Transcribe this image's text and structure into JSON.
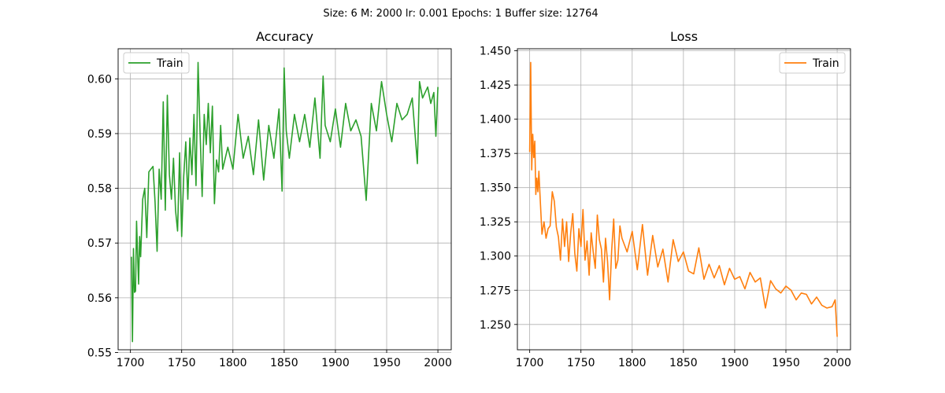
{
  "suptitle": "Size: 6   M: 2000   lr: 0.001   Epochs: 1   Buffer size: 12764",
  "chart_data": [
    {
      "type": "line",
      "title": "Accuracy",
      "xlabel": "",
      "ylabel": "",
      "xlim": [
        1688,
        2013
      ],
      "ylim": [
        0.5505,
        0.6055
      ],
      "xticks": [
        1700,
        1750,
        1800,
        1850,
        1900,
        1950,
        2000
      ],
      "xtick_labels": [
        "1700",
        "1750",
        "1800",
        "1850",
        "1900",
        "1950",
        "2000"
      ],
      "yticks": [
        0.55,
        0.56,
        0.57,
        0.58,
        0.59,
        0.6
      ],
      "ytick_labels": [
        "0.55",
        "0.56",
        "0.57",
        "0.58",
        "0.59",
        "0.60"
      ],
      "grid": true,
      "legend_position": "upper-left",
      "series": [
        {
          "name": "Train",
          "color": "#2ca02c",
          "x": [
            1701,
            1702,
            1703,
            1704,
            1705,
            1706,
            1707,
            1708,
            1709,
            1710,
            1712,
            1714,
            1716,
            1718,
            1720,
            1722,
            1724,
            1726,
            1728,
            1730,
            1732,
            1734,
            1736,
            1738,
            1740,
            1742,
            1744,
            1746,
            1748,
            1750,
            1752,
            1754,
            1756,
            1758,
            1760,
            1762,
            1764,
            1766,
            1768,
            1770,
            1772,
            1774,
            1776,
            1778,
            1780,
            1782,
            1784,
            1786,
            1788,
            1790,
            1795,
            1800,
            1805,
            1810,
            1815,
            1820,
            1825,
            1830,
            1835,
            1840,
            1845,
            1848,
            1850,
            1852,
            1855,
            1860,
            1865,
            1870,
            1875,
            1880,
            1885,
            1888,
            1890,
            1895,
            1900,
            1905,
            1910,
            1915,
            1920,
            1925,
            1930,
            1935,
            1940,
            1945,
            1950,
            1955,
            1960,
            1965,
            1970,
            1975,
            1980,
            1982,
            1985,
            1990,
            1993,
            1996,
            1998,
            2000
          ],
          "y": [
            0.5675,
            0.552,
            0.569,
            0.561,
            0.5612,
            0.574,
            0.568,
            0.5625,
            0.5712,
            0.5675,
            0.578,
            0.58,
            0.571,
            0.583,
            0.5835,
            0.584,
            0.5775,
            0.5685,
            0.5835,
            0.578,
            0.5958,
            0.576,
            0.597,
            0.5825,
            0.578,
            0.5855,
            0.576,
            0.5722,
            0.5865,
            0.5712,
            0.5822,
            0.5885,
            0.578,
            0.5892,
            0.5825,
            0.5935,
            0.5805,
            0.603,
            0.59,
            0.5785,
            0.5935,
            0.588,
            0.5955,
            0.5865,
            0.595,
            0.5772,
            0.5852,
            0.583,
            0.5915,
            0.5835,
            0.5875,
            0.5835,
            0.5935,
            0.5855,
            0.5895,
            0.5825,
            0.5925,
            0.5815,
            0.5915,
            0.5855,
            0.5945,
            0.5795,
            0.602,
            0.5905,
            0.5855,
            0.5935,
            0.5885,
            0.5935,
            0.5875,
            0.5965,
            0.5855,
            0.6005,
            0.5915,
            0.5885,
            0.5945,
            0.5875,
            0.5955,
            0.5905,
            0.5925,
            0.5895,
            0.5778,
            0.5955,
            0.5905,
            0.5995,
            0.5935,
            0.5885,
            0.5955,
            0.5925,
            0.5935,
            0.5965,
            0.5845,
            0.5995,
            0.5965,
            0.5985,
            0.5955,
            0.5975,
            0.5895,
            0.5985
          ]
        }
      ]
    },
    {
      "type": "line",
      "title": "Loss",
      "xlabel": "",
      "ylabel": "",
      "xlim": [
        1688,
        2013
      ],
      "ylim": [
        1.2315,
        1.4515
      ],
      "xticks": [
        1700,
        1750,
        1800,
        1850,
        1900,
        1950,
        2000
      ],
      "xtick_labels": [
        "1700",
        "1750",
        "1800",
        "1850",
        "1900",
        "1950",
        "2000"
      ],
      "yticks": [
        1.25,
        1.275,
        1.3,
        1.325,
        1.35,
        1.375,
        1.4,
        1.425,
        1.45
      ],
      "ytick_labels": [
        "1.250",
        "1.275",
        "1.300",
        "1.325",
        "1.350",
        "1.375",
        "1.400",
        "1.425",
        "1.450"
      ],
      "grid": true,
      "legend_position": "upper-right",
      "series": [
        {
          "name": "Train",
          "color": "#ff7f0e",
          "x": [
            1700,
            1701,
            1702,
            1703,
            1704,
            1705,
            1706,
            1707,
            1708,
            1709,
            1710,
            1712,
            1714,
            1716,
            1718,
            1720,
            1722,
            1724,
            1726,
            1728,
            1730,
            1732,
            1734,
            1736,
            1738,
            1740,
            1742,
            1744,
            1746,
            1748,
            1750,
            1752,
            1754,
            1756,
            1758,
            1760,
            1762,
            1764,
            1766,
            1768,
            1770,
            1772,
            1774,
            1776,
            1778,
            1780,
            1782,
            1784,
            1786,
            1788,
            1790,
            1795,
            1800,
            1805,
            1810,
            1815,
            1820,
            1825,
            1830,
            1835,
            1840,
            1845,
            1850,
            1855,
            1860,
            1865,
            1870,
            1875,
            1880,
            1885,
            1890,
            1895,
            1900,
            1905,
            1910,
            1915,
            1920,
            1925,
            1930,
            1935,
            1940,
            1945,
            1950,
            1955,
            1960,
            1965,
            1970,
            1975,
            1980,
            1985,
            1990,
            1995,
            1998,
            2000
          ],
          "y": [
            1.376,
            1.4415,
            1.363,
            1.389,
            1.372,
            1.384,
            1.345,
            1.357,
            1.347,
            1.362,
            1.346,
            1.316,
            1.325,
            1.313,
            1.32,
            1.322,
            1.347,
            1.34,
            1.321,
            1.314,
            1.297,
            1.327,
            1.307,
            1.325,
            1.296,
            1.317,
            1.331,
            1.302,
            1.289,
            1.32,
            1.307,
            1.334,
            1.297,
            1.311,
            1.286,
            1.317,
            1.303,
            1.291,
            1.33,
            1.312,
            1.305,
            1.281,
            1.313,
            1.296,
            1.268,
            1.304,
            1.327,
            1.291,
            1.297,
            1.322,
            1.313,
            1.303,
            1.318,
            1.29,
            1.323,
            1.286,
            1.315,
            1.292,
            1.305,
            1.281,
            1.312,
            1.296,
            1.303,
            1.289,
            1.287,
            1.306,
            1.283,
            1.294,
            1.284,
            1.293,
            1.279,
            1.291,
            1.283,
            1.285,
            1.276,
            1.288,
            1.281,
            1.284,
            1.262,
            1.282,
            1.276,
            1.273,
            1.278,
            1.275,
            1.268,
            1.273,
            1.272,
            1.265,
            1.27,
            1.264,
            1.262,
            1.263,
            1.268,
            1.241
          ]
        }
      ]
    }
  ]
}
